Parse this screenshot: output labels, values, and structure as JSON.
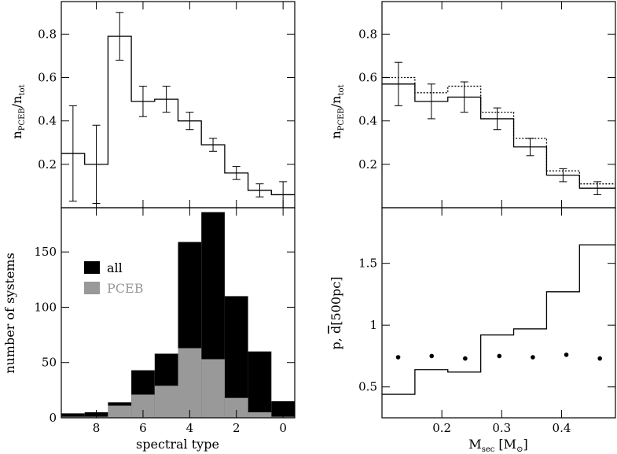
{
  "chart_data": [
    {
      "id": "tl",
      "type": "line",
      "style": "step-with-errorbars",
      "xlabel": "",
      "ylabel": "n_PCEB/n_tot",
      "ylabel_main": "n",
      "ylabel_sub1": "PCEB",
      "ylabel_sep": "/n",
      "ylabel_sub2": "tot",
      "xlim": [
        9.5,
        -0.5
      ],
      "ylim": [
        0,
        0.95
      ],
      "yticks": [
        0.2,
        0.4,
        0.6,
        0.8
      ],
      "ytick_labels": [
        "0.2",
        "0.4",
        "0.6",
        "0.8"
      ],
      "xticks": [
        8,
        6,
        4,
        2,
        0
      ],
      "xtick_labels": [],
      "bin_edges": [
        9.5,
        8.5,
        7.5,
        6.5,
        5.5,
        4.5,
        3.5,
        2.5,
        1.5,
        0.5,
        -0.5
      ],
      "values": [
        0.25,
        0.2,
        0.79,
        0.49,
        0.5,
        0.4,
        0.29,
        0.16,
        0.08,
        0.06
      ],
      "errors": [
        0.22,
        0.18,
        0.11,
        0.07,
        0.06,
        0.04,
        0.03,
        0.03,
        0.03,
        0.06
      ]
    },
    {
      "id": "bl",
      "type": "bar",
      "style": "stacked-histogram",
      "xlabel": "spectral type",
      "ylabel": "number of systems",
      "xlim": [
        9.5,
        -0.5
      ],
      "ylim": [
        0,
        190
      ],
      "yticks": [
        0,
        50,
        100,
        150
      ],
      "ytick_labels": [
        "0",
        "50",
        "100",
        "150"
      ],
      "xticks": [
        8,
        6,
        4,
        2,
        0
      ],
      "xtick_labels": [
        "8",
        "6",
        "4",
        "2",
        "0"
      ],
      "bin_edges": [
        9.5,
        8.5,
        7.5,
        6.5,
        5.5,
        4.5,
        3.5,
        2.5,
        1.5,
        0.5,
        -0.5
      ],
      "series": [
        {
          "name": "all",
          "color": "#000000",
          "values": [
            4,
            5,
            14,
            43,
            58,
            159,
            186,
            110,
            60,
            15
          ]
        },
        {
          "name": "PCEB",
          "color": "#999999",
          "values": [
            1,
            1,
            11,
            21,
            29,
            63,
            53,
            18,
            5,
            1
          ]
        }
      ],
      "legend": {
        "position": "upper-left",
        "entries": [
          "all",
          "PCEB"
        ]
      }
    },
    {
      "id": "tr",
      "type": "line",
      "style": "step-with-errorbars",
      "xlabel": "",
      "ylabel": "n_PCEB/n_tot",
      "ylabel_main": "n",
      "ylabel_sub1": "PCEB",
      "ylabel_sep": "/n",
      "ylabel_sub2": "tot",
      "xlim": [
        0.1,
        0.49
      ],
      "ylim": [
        0,
        0.95
      ],
      "yticks": [
        0.2,
        0.4,
        0.6,
        0.8
      ],
      "ytick_labels": [
        "0.2",
        "0.4",
        "0.6",
        "0.8"
      ],
      "xticks": [
        0.2,
        0.3,
        0.4
      ],
      "xtick_labels": [],
      "bin_edges": [
        0.1,
        0.155,
        0.21,
        0.265,
        0.32,
        0.375,
        0.43,
        0.49
      ],
      "series": [
        {
          "name": "solid",
          "dash": false,
          "values": [
            0.57,
            0.49,
            0.51,
            0.41,
            0.28,
            0.15,
            0.09
          ]
        },
        {
          "name": "dotted",
          "dash": true,
          "values": [
            0.6,
            0.53,
            0.56,
            0.44,
            0.32,
            0.17,
            0.11
          ]
        }
      ],
      "errors": [
        0.1,
        0.08,
        0.07,
        0.05,
        0.04,
        0.03,
        0.03
      ]
    },
    {
      "id": "br",
      "type": "line",
      "style": "step-with-points",
      "xlabel": "M_sec [M_sun]",
      "xlabel_main": "M",
      "xlabel_sub": "sec",
      "xlabel_bracket": " [M",
      "xlabel_sub2": "⊙",
      "xlabel_close": "]",
      "ylabel": "p, d̅[500pc]",
      "ylabel_p": "p, ",
      "ylabel_d": "d",
      "ylabel_rest": "[500pc]",
      "xlim": [
        0.1,
        0.49
      ],
      "ylim": [
        0.25,
        1.95
      ],
      "yticks": [
        0.5,
        1,
        1.5
      ],
      "ytick_labels": [
        "0.5",
        "1",
        "1.5"
      ],
      "xticks": [
        0.2,
        0.3,
        0.4
      ],
      "xtick_labels": [
        "0.2",
        "0.3",
        "0.4"
      ],
      "bin_edges": [
        0.1,
        0.155,
        0.21,
        0.265,
        0.32,
        0.375,
        0.43,
        0.49
      ],
      "step_values": [
        0.44,
        0.64,
        0.62,
        0.92,
        0.97,
        1.27,
        1.65
      ],
      "points": {
        "x": [
          0.127,
          0.183,
          0.239,
          0.296,
          0.352,
          0.408,
          0.464
        ],
        "y": [
          0.74,
          0.75,
          0.73,
          0.75,
          0.74,
          0.76,
          0.73
        ]
      }
    }
  ]
}
